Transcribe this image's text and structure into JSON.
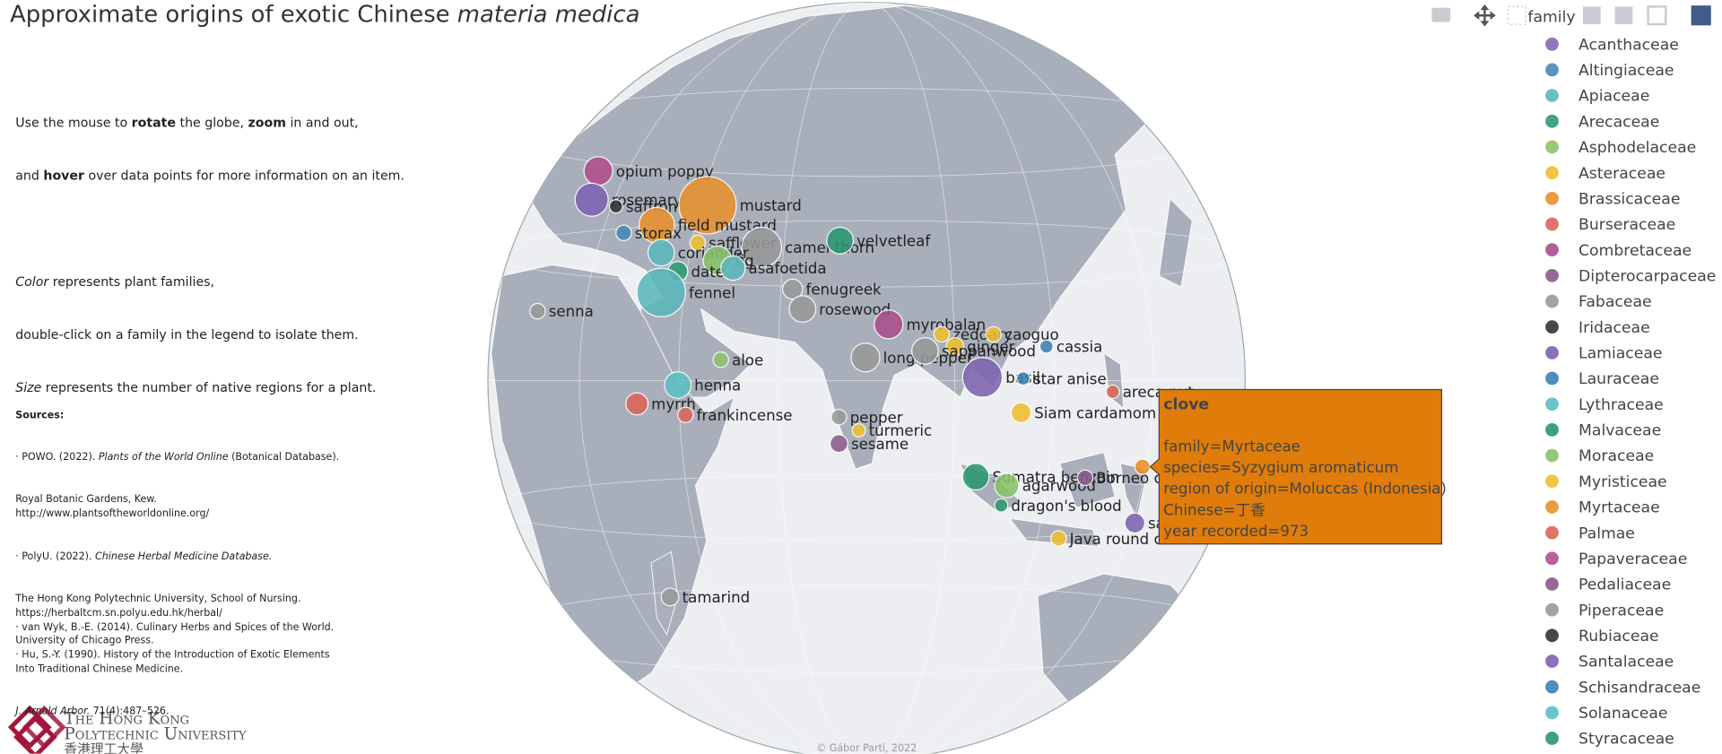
{
  "header": {
    "title": "Approximate origins of exotic Chinese ",
    "title_italic": "materia medica"
  },
  "instructions": [
    [
      "Use the mouse to ",
      "rotate",
      " the globe, ",
      "zoom",
      " in and out,"
    ],
    [
      "and ",
      "hover",
      " over data points for more information on an item."
    ],
    [
      "Color",
      " represents plant families,"
    ],
    [
      "double-click on a family in the legend to isolate them."
    ],
    [
      "Size",
      " represents the number of native regions for a plant."
    ]
  ],
  "sources": {
    "title": "Sources:",
    "lines": [
      "· POWO. (2022). ",
      "Plants of the World Online",
      " (Botanical Database).",
      "Royal Botanic Gardens, Kew.",
      "http://www.plantsoftheworldonline.org/",
      "· PolyU. (2022). ",
      "Chinese Herbal Medicine Database.",
      "The Hong Kong Polytechnic University, School of Nursing.",
      "https://herbaltcm.sn.polyu.edu.hk/herbal/",
      "· van Wyk, B.-E. (2014). Culinary Herbs and Spices of the World.",
      "University of Chicago Press.",
      "· Hu, S.-Y. (1990). History of the Introduction of Exotic Elements",
      "Into Traditional Chinese Medicine.",
      "J. Arnold Arbor.",
      " 71(4):487–526."
    ]
  },
  "legend": {
    "title": "family",
    "items": [
      {
        "name": "Acanthaceae",
        "color": "#8468b0"
      },
      {
        "name": "Altingiaceae",
        "color": "#4a86b6"
      },
      {
        "name": "Apiaceae",
        "color": "#5bb8bc"
      },
      {
        "name": "Arecaceae",
        "color": "#2e9b6f"
      },
      {
        "name": "Asphodelaceae",
        "color": "#8fc26a"
      },
      {
        "name": "Asteraceae",
        "color": "#efbf30"
      },
      {
        "name": "Brassicaceae",
        "color": "#e8912c"
      },
      {
        "name": "Burseraceae",
        "color": "#d9665a"
      },
      {
        "name": "Combretaceae",
        "color": "#a94f8c"
      },
      {
        "name": "Dipterocarpaceae",
        "color": "#8a5a8c"
      },
      {
        "name": "Fabaceae",
        "color": "#999999"
      },
      {
        "name": "Iridaceae",
        "color": "#333333"
      },
      {
        "name": "Lamiaceae",
        "color": "#7e63b0"
      },
      {
        "name": "Lauraceae",
        "color": "#3d7fb0"
      },
      {
        "name": "Lythraceae",
        "color": "#5bbfc2"
      },
      {
        "name": "Malvaceae",
        "color": "#2b9670"
      },
      {
        "name": "Moraceae",
        "color": "#8ac26a"
      },
      {
        "name": "Myristiceae",
        "color": "#f0c030"
      },
      {
        "name": "Myrtaceae",
        "color": "#e8912c"
      },
      {
        "name": "Palmae",
        "color": "#dc6458"
      },
      {
        "name": "Papaveraceae",
        "color": "#b0508c"
      },
      {
        "name": "Pedaliaceae",
        "color": "#8a5a8c"
      },
      {
        "name": "Piperaceae",
        "color": "#999999"
      },
      {
        "name": "Rubiaceae",
        "color": "#333333"
      },
      {
        "name": "Santalaceae",
        "color": "#7e63b0"
      },
      {
        "name": "Schisandraceae",
        "color": "#3d7fb0"
      },
      {
        "name": "Solanaceae",
        "color": "#5bbfc2"
      },
      {
        "name": "Styracaceae",
        "color": "#2b9670"
      }
    ]
  },
  "points": [
    {
      "label": "opium poppy",
      "family": 20
    },
    {
      "label": "rosemary",
      "family": 12
    },
    {
      "label": "saffron",
      "family": 11
    },
    {
      "label": "mustard",
      "family": 6
    },
    {
      "label": "field mustard",
      "family": 6
    },
    {
      "label": "storax",
      "family": 1
    },
    {
      "label": "safflower",
      "family": 5
    },
    {
      "label": "camel thorn",
      "family": 10
    },
    {
      "label": "velvetleaf",
      "family": 15
    },
    {
      "label": "coriander",
      "family": 2
    },
    {
      "label": "fig",
      "family": 16
    },
    {
      "label": "date",
      "family": 3
    },
    {
      "label": "asafoetida",
      "family": 2
    },
    {
      "label": "fennel",
      "family": 2
    },
    {
      "label": "fenugreek",
      "family": 10
    },
    {
      "label": "rosewood",
      "family": 10
    },
    {
      "label": "senna",
      "family": 10
    },
    {
      "label": "aloe",
      "family": 4
    },
    {
      "label": "myrobalan",
      "family": 8
    },
    {
      "label": "zedoary",
      "family": 5
    },
    {
      "label": "caoguo",
      "family": 5
    },
    {
      "label": "ginger",
      "family": 5
    },
    {
      "label": "long pepper",
      "family": 22
    },
    {
      "label": "sappanwood",
      "family": 10
    },
    {
      "label": "cassia",
      "family": 13
    },
    {
      "label": "basil",
      "family": 12
    },
    {
      "label": "star anise",
      "family": 25
    },
    {
      "label": "henna",
      "family": 14
    },
    {
      "label": "myrrh",
      "family": 7
    },
    {
      "label": "frankincense",
      "family": 7
    },
    {
      "label": "areca nut",
      "family": 19
    },
    {
      "label": "Siam cardamom",
      "family": 5
    },
    {
      "label": "pepper",
      "family": 22
    },
    {
      "label": "turmeric",
      "family": 5
    },
    {
      "label": "sesame",
      "family": 21
    },
    {
      "label": "Sumatra benzoin",
      "family": 27
    },
    {
      "label": "agarwood",
      "family": 16
    },
    {
      "label": "dragon's blood",
      "family": 3
    },
    {
      "label": "Borneo camphor",
      "family": 9
    },
    {
      "label": "clove",
      "family": 18
    },
    {
      "label": "sandalwood",
      "family": 24
    },
    {
      "label": "Java round cardamom",
      "family": 5
    },
    {
      "label": "tamarind",
      "family": 10
    }
  ],
  "tooltip": {
    "title": "clove",
    "lines": [
      "family=Myrtaceae",
      "species=Syzygium aromaticum",
      "region of origin=Moluccas (Indonesia)",
      "Chinese=丁香",
      "year recorded=973"
    ]
  },
  "credit": "© Gábor Parti, 2022",
  "logo": [
    "The Hong Kong",
    "Polytechnic University",
    "香港理工大學"
  ]
}
